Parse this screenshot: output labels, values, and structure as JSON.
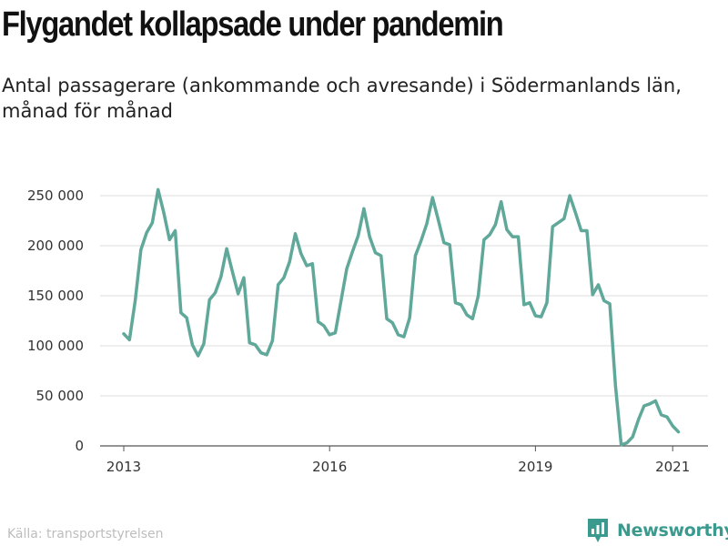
{
  "title": "Flygandet kollapsade under pandemin",
  "subtitle": "Antal passagerare (ankommande och avresande) i Södermanlands län, månad för månad",
  "source": "Källa: transportstyrelsen",
  "brand": {
    "name": "Newsworthy",
    "icon": "bar-chart-logo-icon",
    "color": "#3a9a8e"
  },
  "chart_data": {
    "type": "line",
    "grid": "horizontal",
    "line_color": "#5fa89a",
    "x_ticks": [
      2013,
      2016,
      2019,
      2021
    ],
    "y_ticks": [
      {
        "value": 0,
        "label": "0"
      },
      {
        "value": 50000,
        "label": "50 000"
      },
      {
        "value": 100000,
        "label": "100 000"
      },
      {
        "value": 150000,
        "label": "150 000"
      },
      {
        "value": 200000,
        "label": "200 000"
      },
      {
        "value": 250000,
        "label": "250 000"
      }
    ],
    "x_range": [
      2013.0,
      2021.25
    ],
    "ylim": [
      0,
      260000
    ],
    "series": [
      {
        "start": "2013-01",
        "values": [
          112000,
          106000,
          145000,
          196000,
          213000,
          223000,
          256000,
          233000,
          206000,
          215000,
          133000,
          128000,
          101000,
          90000,
          102000,
          146000,
          153000,
          169000,
          197000,
          174000,
          152000,
          168000,
          103000,
          101000,
          93000,
          91000,
          105000,
          161000,
          168000,
          184000,
          212000,
          192000,
          180000,
          182000,
          124000,
          120000,
          111000,
          113000,
          145000,
          177000,
          194000,
          210000,
          237000,
          209000,
          193000,
          190000,
          127000,
          123000,
          111000,
          109000,
          128000,
          190000,
          205000,
          222000,
          248000,
          226000,
          203000,
          201000,
          143000,
          141000,
          131000,
          127000,
          150000,
          206000,
          211000,
          221000,
          244000,
          216000,
          209000,
          209000,
          141000,
          143000,
          130000,
          129000,
          143000,
          219000,
          223000,
          227000,
          250000,
          233000,
          215000,
          215000,
          151000,
          161000,
          145000,
          142000,
          60000,
          1000,
          3000,
          9000,
          26000,
          40000,
          42000,
          45000,
          31000,
          29000,
          20000,
          14000
        ]
      }
    ]
  }
}
